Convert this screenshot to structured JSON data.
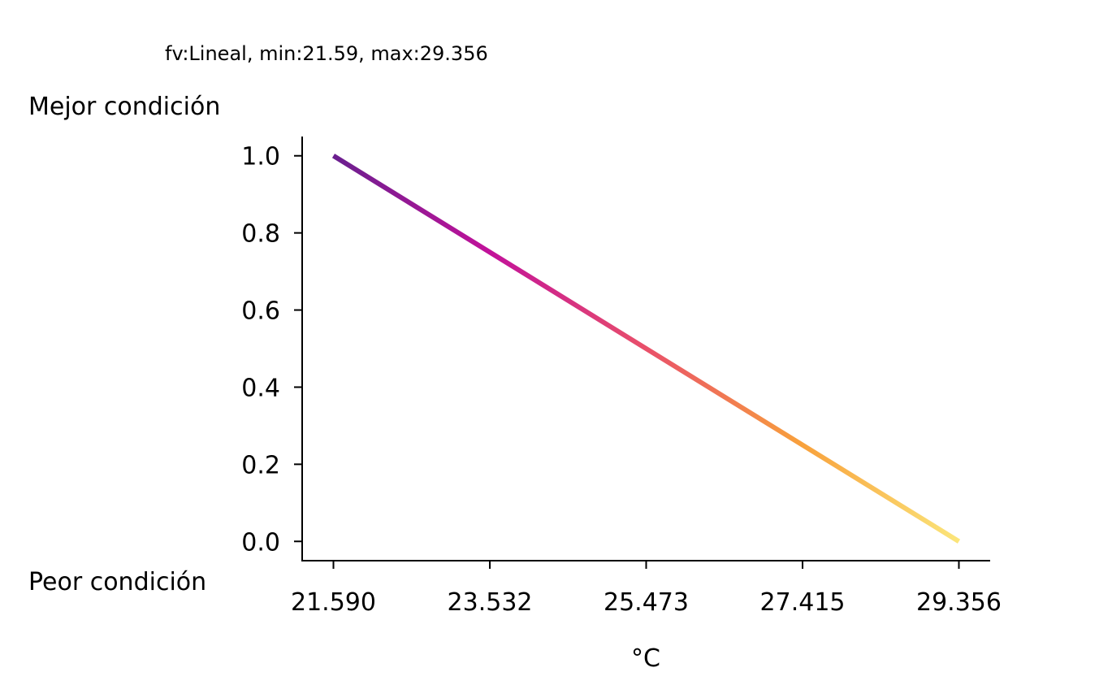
{
  "chart_data": {
    "type": "line",
    "title": "fv:Lineal, min:21.59, max:29.356",
    "xlabel": "°C",
    "ylabel_top": "Mejor condición",
    "ylabel_bottom": "Peor condición",
    "x": [
      21.59,
      29.356
    ],
    "y": [
      1.0,
      0.0
    ],
    "xlim": [
      21.2017,
      29.7443
    ],
    "ylim": [
      -0.05,
      1.05
    ],
    "xticks": [
      21.59,
      23.532,
      25.473,
      27.415,
      29.356
    ],
    "xtick_labels": [
      "21.590",
      "23.532",
      "25.473",
      "27.415",
      "29.356"
    ],
    "yticks": [
      0.0,
      0.2,
      0.4,
      0.6,
      0.8,
      1.0
    ],
    "ytick_labels": [
      "0.0",
      "0.2",
      "0.4",
      "0.6",
      "0.8",
      "1.0"
    ],
    "colormap": "plasma",
    "grid": false,
    "legend": "none"
  }
}
